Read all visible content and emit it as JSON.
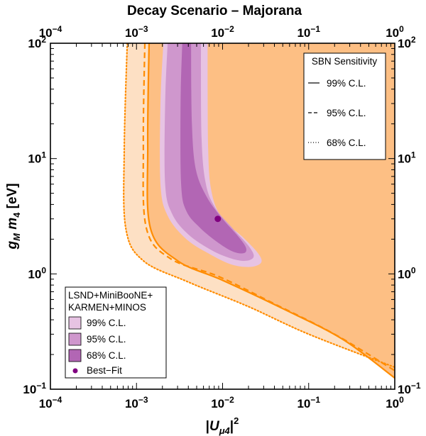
{
  "chart_data": {
    "type": "contour",
    "title": "Decay Scenario – Majorana",
    "xlabel": "|U_μ4|²",
    "ylabel": "g_M m_4 [eV]",
    "x_scale": "log",
    "y_scale": "log",
    "xlim": [
      0.0001,
      1
    ],
    "ylim": [
      0.1,
      100
    ],
    "x_ticks": [
      {
        "base": "10",
        "exp": "−4"
      },
      {
        "base": "10",
        "exp": "−3"
      },
      {
        "base": "10",
        "exp": "−2"
      },
      {
        "base": "10",
        "exp": "−1"
      },
      {
        "base": "10",
        "exp": "0"
      }
    ],
    "y_ticks": [
      {
        "base": "10",
        "exp": "−1"
      },
      {
        "base": "10",
        "exp": "0"
      },
      {
        "base": "10",
        "exp": "1"
      },
      {
        "base": "10",
        "exp": "2"
      }
    ],
    "x_tick_values": [
      0.0001,
      0.001,
      0.01,
      0.1,
      1
    ],
    "y_tick_values": [
      0.1,
      1,
      10,
      100
    ],
    "sbn_legend": {
      "title": "SBN Sensitivity",
      "items": [
        {
          "label": "99% C.L.",
          "style": "solid"
        },
        {
          "label": "95% C.L.",
          "style": "dashed"
        },
        {
          "label": "68% C.L.",
          "style": "dotted"
        }
      ]
    },
    "fit_legend": {
      "title_lines": [
        "LSND+MiniBooNE+",
        "KARMEN+MINOS"
      ],
      "items": [
        {
          "label": "99% C.L.",
          "color": "#e7c3e3"
        },
        {
          "label": "95% C.L.",
          "color": "#cf97cd"
        },
        {
          "label": "68% C.L.",
          "color": "#b266b4"
        }
      ],
      "best_fit_label": "Best−Fit"
    },
    "best_fit": {
      "x": 0.0088,
      "y": 3.0
    },
    "sbn_contours": {
      "dotted_68": [
        [
          0.00078,
          100
        ],
        [
          0.00072,
          12
        ],
        [
          0.00075,
          2.5
        ],
        [
          0.0012,
          1.3
        ],
        [
          0.004,
          0.85
        ],
        [
          0.02,
          0.52
        ],
        [
          0.1,
          0.3
        ],
        [
          1,
          0.155
        ]
      ],
      "dashed_95": [
        [
          0.00125,
          100
        ],
        [
          0.0012,
          13
        ],
        [
          0.0013,
          2.5
        ],
        [
          0.0025,
          1.35
        ],
        [
          0.009,
          0.95
        ],
        [
          0.04,
          0.55
        ],
        [
          0.2,
          0.3
        ],
        [
          1,
          0.145
        ]
      ],
      "solid_99": [
        [
          0.0014,
          100
        ],
        [
          0.00135,
          13
        ],
        [
          0.00145,
          2.5
        ],
        [
          0.003,
          1.3
        ],
        [
          0.01,
          0.88
        ],
        [
          0.05,
          0.5
        ],
        [
          0.25,
          0.27
        ],
        [
          1,
          0.125
        ]
      ]
    },
    "excluded_region_color": "#fdbf84",
    "band_color": "#fde0c4",
    "contour_line_color": "#ff8c00",
    "fit_regions": {
      "r99": [
        [
          0.00205,
          100
        ],
        [
          0.0019,
          30
        ],
        [
          0.0019,
          6
        ],
        [
          0.0023,
          3.2
        ],
        [
          0.0038,
          2.0
        ],
        [
          0.0075,
          1.45
        ],
        [
          0.013,
          1.2
        ],
        [
          0.021,
          1.15
        ],
        [
          0.028,
          1.25
        ],
        [
          0.026,
          1.5
        ],
        [
          0.017,
          2.1
        ],
        [
          0.01,
          3.0
        ],
        [
          0.0075,
          5
        ],
        [
          0.0068,
          12
        ],
        [
          0.0067,
          100
        ]
      ],
      "r95": [
        [
          0.0023,
          100
        ],
        [
          0.00215,
          30
        ],
        [
          0.00215,
          6
        ],
        [
          0.0026,
          3.3
        ],
        [
          0.004,
          2.2
        ],
        [
          0.0075,
          1.6
        ],
        [
          0.013,
          1.35
        ],
        [
          0.019,
          1.3
        ],
        [
          0.023,
          1.42
        ],
        [
          0.02,
          1.75
        ],
        [
          0.013,
          2.5
        ],
        [
          0.0083,
          3.7
        ],
        [
          0.0064,
          6
        ],
        [
          0.0057,
          15
        ],
        [
          0.0056,
          100
        ]
      ],
      "r68": [
        [
          0.0034,
          100
        ],
        [
          0.00325,
          30
        ],
        [
          0.0033,
          6
        ],
        [
          0.0038,
          3.5
        ],
        [
          0.0055,
          2.5
        ],
        [
          0.009,
          1.85
        ],
        [
          0.0135,
          1.55
        ],
        [
          0.018,
          1.52
        ],
        [
          0.0185,
          1.72
        ],
        [
          0.0145,
          2.2
        ],
        [
          0.01,
          3.0
        ],
        [
          0.0066,
          4.6
        ],
        [
          0.0049,
          8
        ],
        [
          0.0044,
          20
        ],
        [
          0.0043,
          100
        ]
      ]
    }
  }
}
